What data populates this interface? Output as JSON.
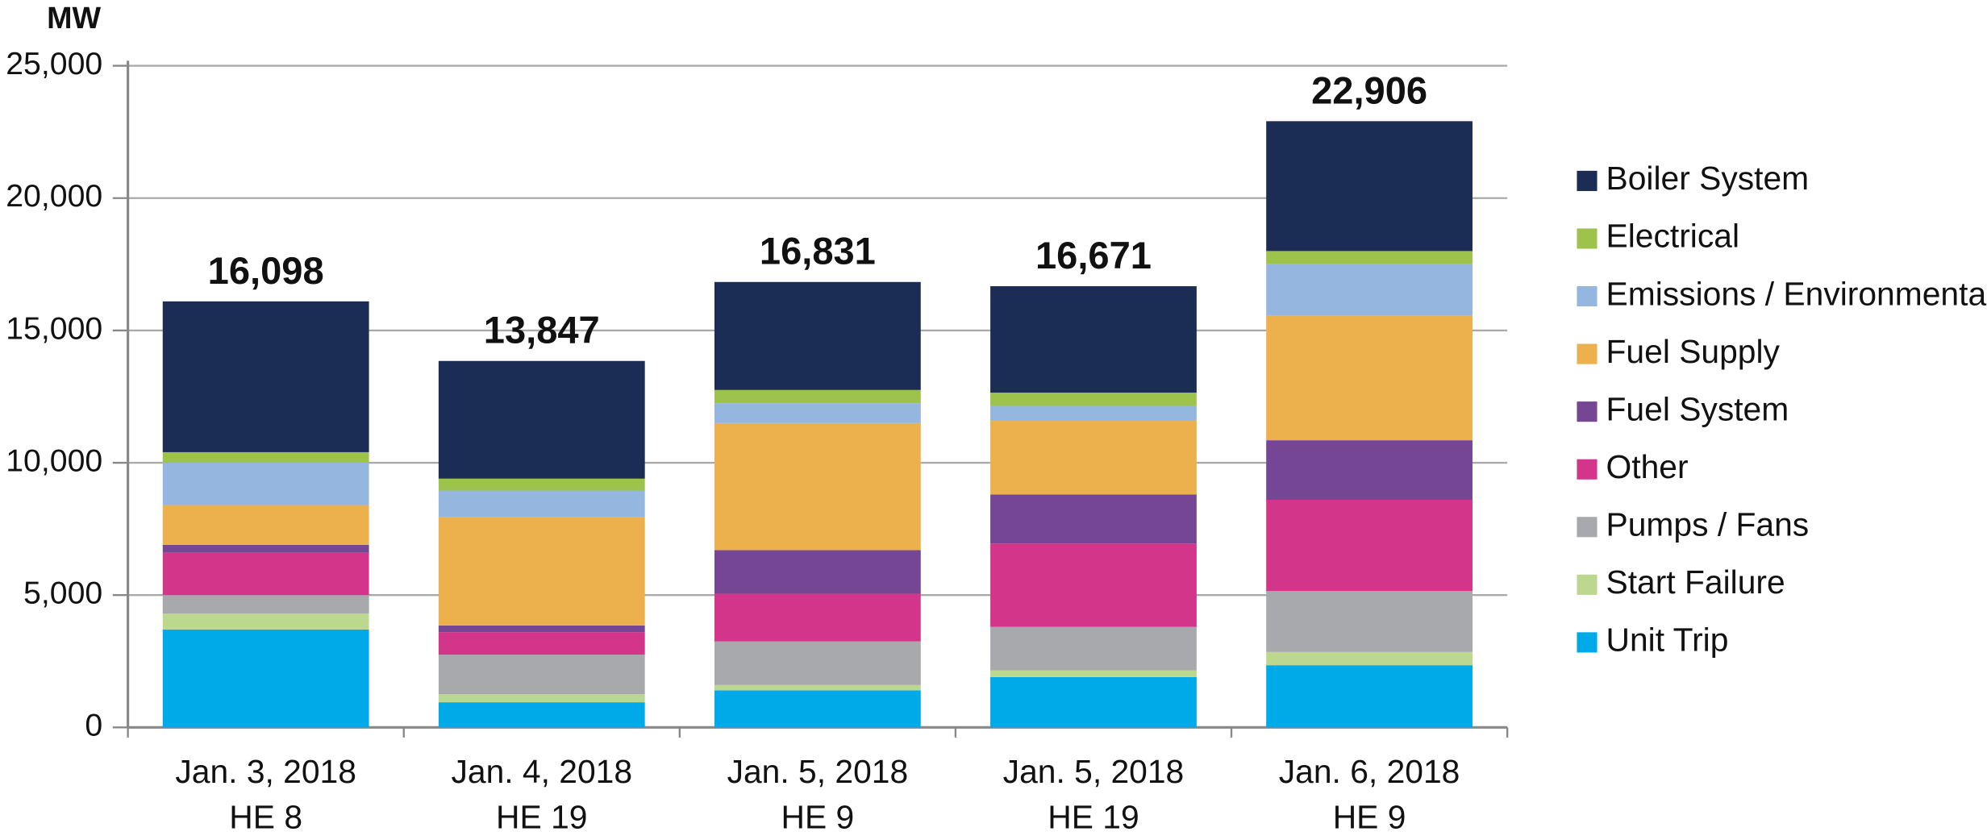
{
  "chart_data": {
    "type": "stacked_bar",
    "y_label": "MW",
    "categories": [
      [
        "Jan. 3, 2018",
        "HE 8"
      ],
      [
        "Jan. 4, 2018",
        "HE 19"
      ],
      [
        "Jan. 5, 2018",
        "HE 9"
      ],
      [
        "Jan. 5, 2018",
        "HE 19"
      ],
      [
        "Jan. 6, 2018",
        "HE 9"
      ]
    ],
    "series": [
      {
        "name": "Unit Trip",
        "color": "#00a9e8",
        "values": [
          3700,
          950,
          1400,
          1900,
          2350
        ]
      },
      {
        "name": "Start Failure",
        "color": "#bcd88f",
        "values": [
          600,
          300,
          200,
          250,
          500
        ]
      },
      {
        "name": "Pumps / Fans",
        "color": "#a8a9ad",
        "values": [
          700,
          1500,
          1650,
          1650,
          2300
        ]
      },
      {
        "name": "Other",
        "color": "#d3358a",
        "values": [
          1600,
          850,
          1800,
          3150,
          3450
        ]
      },
      {
        "name": "Fuel System",
        "color": "#744694",
        "values": [
          300,
          250,
          1650,
          1850,
          2250
        ]
      },
      {
        "name": "Fuel Supply",
        "color": "#ecb04c",
        "values": [
          1500,
          4100,
          4800,
          2800,
          4700
        ]
      },
      {
        "name": "Emissions / Environmental",
        "color": "#94b6df",
        "values": [
          1600,
          1000,
          750,
          550,
          1950
        ]
      },
      {
        "name": "Electrical",
        "color": "#9dc34c",
        "values": [
          400,
          450,
          500,
          500,
          500
        ]
      },
      {
        "name": "Boiler System",
        "color": "#1b2d55",
        "values": [
          5698,
          4447,
          4081,
          4021,
          4906
        ]
      }
    ],
    "totals": [
      16098,
      13847,
      16831,
      16671,
      22906
    ],
    "total_labels": [
      "16,098",
      "13,847",
      "16,831",
      "16,671",
      "22,906"
    ],
    "ylim": [
      0,
      25000
    ],
    "yticks": [
      0,
      {
        "value": 5000,
        "label": "5,000"
      },
      {
        "value": 10000,
        "label": "10,000"
      },
      {
        "value": 15000,
        "label": "15,000"
      },
      {
        "value": 20000,
        "label": "20,000"
      },
      {
        "value": 25000,
        "label": "25,000"
      }
    ],
    "grid": true,
    "legend": "right"
  }
}
